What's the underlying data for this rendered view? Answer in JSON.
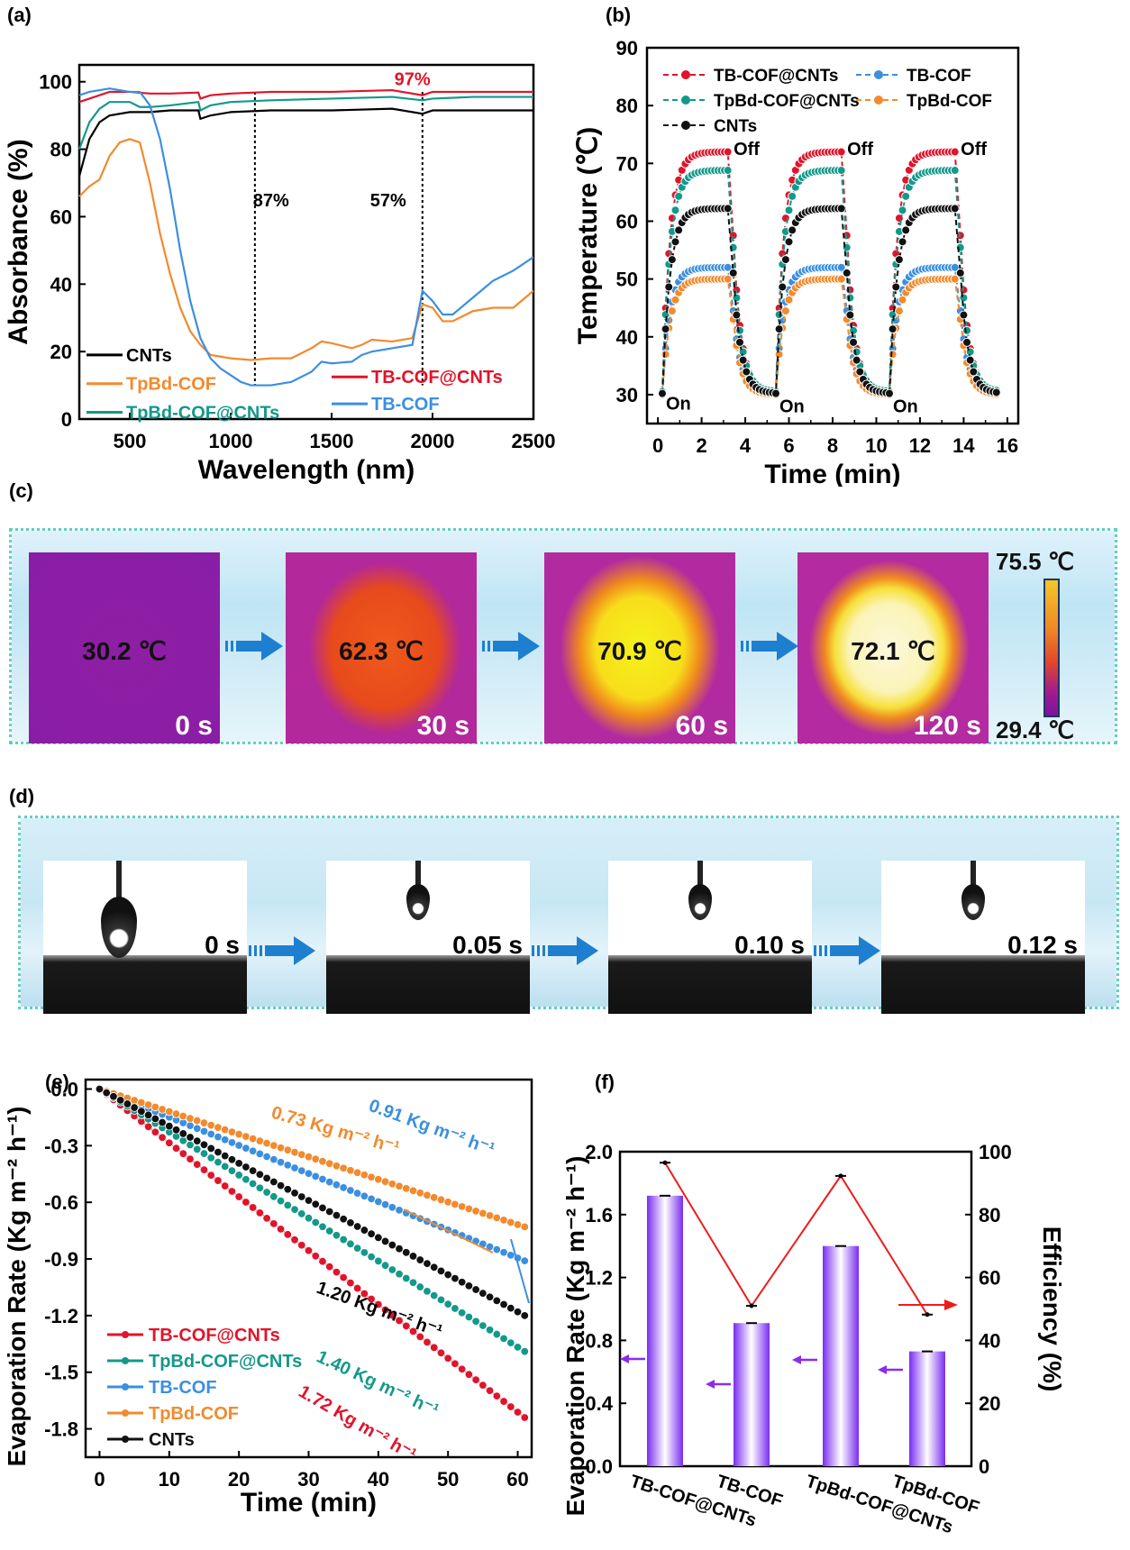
{
  "panel_labels": {
    "a": "(a)",
    "b": "(b)",
    "c": "(c)",
    "d": "(d)",
    "e": "(e)",
    "f": "(f)"
  },
  "chart_data": [
    {
      "id": "a",
      "type": "line",
      "xlabel": "Wavelength (nm)",
      "ylabel": "Absorbance (%)",
      "xlim": [
        250,
        2500
      ],
      "ylim": [
        0,
        105
      ],
      "xticks": [
        500,
        1000,
        1500,
        2000,
        2500
      ],
      "yticks": [
        0,
        20,
        40,
        60,
        80,
        100
      ],
      "grid": false,
      "legend": [
        {
          "name": "CNTs",
          "color": "#000000"
        },
        {
          "name": "TpBd-COF",
          "color": "#f28a2e"
        },
        {
          "name": "TpBd-COF@CNTs",
          "color": "#13998a"
        },
        {
          "name": "TB-COF@CNTs",
          "color": "#e0142a"
        },
        {
          "name": "TB-COF",
          "color": "#3b8fe0"
        }
      ],
      "legend_position": "bottom-left",
      "annotations": [
        {
          "text": "97%",
          "color": "#e0142a",
          "x": 1900,
          "y": 99
        },
        {
          "text": "87%",
          "color": "#000000",
          "x": 1200,
          "y": 63
        },
        {
          "text": "57%",
          "color": "#000000",
          "x": 1780,
          "y": 63
        }
      ],
      "vlines": [
        1120,
        1950
      ],
      "series": [
        {
          "name": "TB-COF@CNTs",
          "color": "#e0142a",
          "x": [
            250,
            300,
            400,
            500,
            600,
            700,
            840,
            850,
            900,
            1000,
            1200,
            1500,
            1800,
            1950,
            2000,
            2200,
            2500
          ],
          "y": [
            94,
            95,
            97,
            97,
            96.5,
            96.5,
            96.8,
            95,
            96,
            96.5,
            97,
            97,
            97.5,
            96,
            97,
            97,
            97
          ]
        },
        {
          "name": "TpBd-COF@CNTs",
          "color": "#13998a",
          "x": [
            250,
            300,
            350,
            400,
            500,
            550,
            600,
            700,
            840,
            850,
            900,
            1000,
            1200,
            1500,
            1800,
            1950,
            2000,
            2200,
            2500
          ],
          "y": [
            80,
            88,
            92,
            94,
            94,
            92.5,
            92.5,
            93,
            94,
            91.5,
            93,
            94,
            94.5,
            95,
            95.5,
            94.5,
            95,
            95.5,
            95.5
          ]
        },
        {
          "name": "CNTs",
          "color": "#000000",
          "x": [
            250,
            300,
            350,
            400,
            500,
            600,
            700,
            840,
            850,
            900,
            1000,
            1200,
            1500,
            1800,
            1950,
            2000,
            2200,
            2500
          ],
          "y": [
            72,
            83,
            88,
            90,
            91,
            91,
            91.5,
            91.5,
            89,
            90,
            91,
            91.5,
            91.5,
            92,
            90.5,
            91.5,
            91.5,
            91.5
          ]
        },
        {
          "name": "TpBd-COF",
          "color": "#f28a2e",
          "x": [
            250,
            300,
            350,
            400,
            450,
            500,
            550,
            600,
            650,
            700,
            750,
            800,
            850,
            900,
            950,
            1000,
            1100,
            1200,
            1300,
            1400,
            1450,
            1500,
            1600,
            1650,
            1700,
            1800,
            1900,
            1950,
            2000,
            2050,
            2100,
            2200,
            2300,
            2400,
            2500
          ],
          "y": [
            66,
            69,
            71,
            78,
            82,
            83,
            82,
            70,
            55,
            43,
            33,
            26,
            22,
            19,
            18.5,
            18,
            17.5,
            18,
            18,
            21,
            23,
            22.5,
            21,
            22,
            23.5,
            23,
            24,
            34,
            33,
            29,
            29,
            32,
            33,
            33,
            38
          ]
        },
        {
          "name": "TB-COF",
          "color": "#3b8fe0",
          "x": [
            250,
            300,
            400,
            500,
            550,
            600,
            650,
            700,
            750,
            800,
            850,
            900,
            950,
            1000,
            1050,
            1100,
            1200,
            1300,
            1400,
            1450,
            1500,
            1600,
            1650,
            1700,
            1800,
            1900,
            1950,
            2000,
            2050,
            2100,
            2200,
            2300,
            2400,
            2500
          ],
          "y": [
            96,
            97,
            98,
            97,
            97,
            93,
            83,
            68,
            50,
            35,
            24,
            18,
            15,
            13,
            11,
            10,
            10,
            11,
            14,
            17,
            16.5,
            17,
            19,
            20,
            21,
            22,
            38,
            35,
            31,
            31,
            36,
            41,
            44,
            48
          ]
        }
      ]
    },
    {
      "id": "b",
      "type": "line",
      "xlabel": "Time (min)",
      "ylabel": "Temperature (℃)",
      "xlim": [
        -0.5,
        16.5
      ],
      "ylim": [
        25,
        90
      ],
      "xticks": [
        0,
        2,
        4,
        6,
        8,
        10,
        12,
        14,
        16
      ],
      "yticks": [
        30,
        40,
        50,
        60,
        70,
        80,
        90
      ],
      "grid": false,
      "legend_position": "top",
      "annotations": [
        {
          "text": "On",
          "x": 0.2,
          "y": 29
        },
        {
          "text": "On",
          "x": 5.4,
          "y": 28.5
        },
        {
          "text": "On",
          "x": 10.6,
          "y": 28.5
        },
        {
          "text": "Off",
          "x": 3.3,
          "y": 73
        },
        {
          "text": "Off",
          "x": 8.5,
          "y": 73
        },
        {
          "text": "Off",
          "x": 13.7,
          "y": 73
        }
      ],
      "cycle_on_times": [
        0.2,
        5.4,
        10.6
      ],
      "cycle_off_times": [
        3.3,
        8.5,
        13.7
      ],
      "cycle_end_times": [
        5.4,
        10.6,
        15.6
      ],
      "series": [
        {
          "name": "TB-COF@CNTs",
          "color": "#e0142a",
          "plateau": 72,
          "base": 30.5
        },
        {
          "name": "TB-COF",
          "color": "#3b8fe0",
          "plateau": 52,
          "base": 30.5
        },
        {
          "name": "TpBd-COF@CNTs",
          "color": "#13998a",
          "plateau": 68.8,
          "base": 30.5
        },
        {
          "name": "TpBd-COF",
          "color": "#f28a2e",
          "plateau": 50,
          "base": 30
        },
        {
          "name": "CNTs",
          "color": "#111111",
          "plateau": 62.2,
          "base": 30.2
        }
      ]
    },
    {
      "id": "e",
      "type": "scatter",
      "xlabel": "Time (min)",
      "ylabel": "Evaporation Rate (Kg m⁻² h⁻¹)",
      "xlim": [
        -2,
        62
      ],
      "ylim": [
        -1.95,
        0.05
      ],
      "xticks": [
        0,
        10,
        20,
        30,
        40,
        50,
        60
      ],
      "yticks": [
        0.0,
        -0.3,
        -0.6,
        -0.9,
        -1.2,
        -1.5,
        -1.8
      ],
      "grid": false,
      "legend_position": "bottom-left",
      "series": [
        {
          "name": "TB-COF@CNTs",
          "color": "#e0142a",
          "rate": 1.72,
          "end_value": -1.74
        },
        {
          "name": "TpBd-COF@CNTs",
          "color": "#13998a",
          "rate": 1.4,
          "end_value": -1.39
        },
        {
          "name": "TB-COF",
          "color": "#3b8fe0",
          "rate": 0.91,
          "end_value": -0.91
        },
        {
          "name": "TpBd-COF",
          "color": "#f28a2e",
          "rate": 0.73,
          "end_value": -0.73
        },
        {
          "name": "CNTs",
          "color": "#111111",
          "rate": 1.2,
          "end_value": -1.2
        }
      ],
      "annotations": [
        {
          "text": "0.73 Kg m⁻² h⁻¹",
          "color": "#f28a2e"
        },
        {
          "text": "0.91 Kg m⁻² h⁻¹",
          "color": "#3b8fe0"
        },
        {
          "text": "1.20 Kg m⁻² h⁻¹",
          "color": "#000000"
        },
        {
          "text": "1.40 Kg m⁻² h⁻¹",
          "color": "#13998a"
        },
        {
          "text": "1.72 Kg m⁻² h⁻¹",
          "color": "#e0142a"
        }
      ]
    },
    {
      "id": "f",
      "type": "bar",
      "categories": [
        "TB-COF@CNTs",
        "TB-COF",
        "TpBd-COF@CNTs",
        "TpBd-COF"
      ],
      "ylabel": "Evaporation Rate (Kg m⁻² h⁻¹)",
      "y2label": "Efficiency (%)",
      "ylim": [
        0,
        2.0
      ],
      "y2lim": [
        0,
        100
      ],
      "yticks": [
        0.0,
        0.4,
        0.8,
        1.2,
        1.6,
        2.0
      ],
      "y2ticks": [
        0,
        20,
        40,
        60,
        80,
        100
      ],
      "series": [
        {
          "name": "Evaporation Rate",
          "axis": "left",
          "color": "#7a3cf0",
          "values": [
            1.72,
            0.91,
            1.4,
            0.73
          ]
        },
        {
          "name": "Efficiency",
          "axis": "right",
          "color": "#ee1c1c",
          "values": [
            96.5,
            51,
            92.3,
            48.2
          ]
        }
      ]
    }
  ],
  "panel_c": {
    "frames": [
      {
        "temp": "30.2 ℃",
        "time": "0 s"
      },
      {
        "temp": "62.3 ℃",
        "time": "30 s"
      },
      {
        "temp": "70.9 ℃",
        "time": "60 s"
      },
      {
        "temp": "72.1 ℃",
        "time": "120 s"
      }
    ],
    "scale_max": "75.5 ℃",
    "scale_min": "29.4 ℃"
  },
  "panel_d": {
    "frames": [
      {
        "time": "0 s"
      },
      {
        "time": "0.05 s"
      },
      {
        "time": "0.10 s"
      },
      {
        "time": "0.12 s"
      }
    ]
  }
}
